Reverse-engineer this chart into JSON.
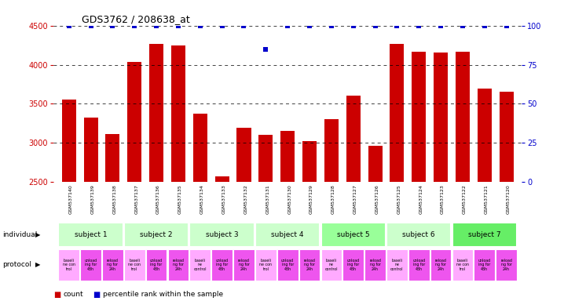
{
  "title": "GDS3762 / 208638_at",
  "samples": [
    "GSM537140",
    "GSM537139",
    "GSM537138",
    "GSM537137",
    "GSM537136",
    "GSM537135",
    "GSM537134",
    "GSM537133",
    "GSM537132",
    "GSM537131",
    "GSM537130",
    "GSM537129",
    "GSM537128",
    "GSM537127",
    "GSM537126",
    "GSM537125",
    "GSM537124",
    "GSM537123",
    "GSM537122",
    "GSM537121",
    "GSM537120"
  ],
  "counts": [
    3550,
    3320,
    3110,
    4040,
    4270,
    4250,
    3370,
    2570,
    3195,
    3100,
    3155,
    3020,
    3300,
    3600,
    2960,
    4270,
    4165,
    4160,
    4165,
    3700,
    3660
  ],
  "percentile_ranks": [
    100,
    100,
    100,
    100,
    100,
    100,
    100,
    100,
    100,
    85,
    100,
    100,
    100,
    100,
    100,
    100,
    100,
    100,
    100,
    100,
    100
  ],
  "ylim_left": [
    2500,
    4500
  ],
  "ylim_right": [
    0,
    100
  ],
  "yticks_left": [
    2500,
    3000,
    3500,
    4000,
    4500
  ],
  "yticks_right": [
    0,
    25,
    50,
    75,
    100
  ],
  "bar_color": "#cc0000",
  "dot_color": "#0000cc",
  "bar_width": 0.65,
  "subjects": [
    {
      "label": "subject 1",
      "start": 0,
      "end": 3,
      "color": "#ccffcc"
    },
    {
      "label": "subject 2",
      "start": 3,
      "end": 6,
      "color": "#ccffcc"
    },
    {
      "label": "subject 3",
      "start": 6,
      "end": 9,
      "color": "#ccffcc"
    },
    {
      "label": "subject 4",
      "start": 9,
      "end": 12,
      "color": "#ccffcc"
    },
    {
      "label": "subject 5",
      "start": 12,
      "end": 15,
      "color": "#99ff99"
    },
    {
      "label": "subject 6",
      "start": 15,
      "end": 18,
      "color": "#ccffcc"
    },
    {
      "label": "subject 7",
      "start": 18,
      "end": 21,
      "color": "#66ee66"
    }
  ],
  "protocols": [
    {
      "label": "baseli\nne con\ntrol",
      "color": "#ffaaff"
    },
    {
      "label": "unload\ning for\n48h",
      "color": "#ee55ee"
    },
    {
      "label": "reload\nng for\n24h",
      "color": "#ee55ee"
    },
    {
      "label": "baseli\nne con\ntrol",
      "color": "#ffaaff"
    },
    {
      "label": "unload\ning for\n48h",
      "color": "#ee55ee"
    },
    {
      "label": "reload\nng for\n24h",
      "color": "#ee55ee"
    },
    {
      "label": "baseli\nne\ncontrol",
      "color": "#ffaaff"
    },
    {
      "label": "unload\ning for\n48h",
      "color": "#ee55ee"
    },
    {
      "label": "reload\nng for\n24h",
      "color": "#ee55ee"
    },
    {
      "label": "baseli\nne con\ntrol",
      "color": "#ffaaff"
    },
    {
      "label": "unload\ning for\n48h",
      "color": "#ee55ee"
    },
    {
      "label": "reload\nng for\n24h",
      "color": "#ee55ee"
    },
    {
      "label": "baseli\nne\ncontrol",
      "color": "#ffaaff"
    },
    {
      "label": "unload\ning for\n48h",
      "color": "#ee55ee"
    },
    {
      "label": "reload\nng for\n24h",
      "color": "#ee55ee"
    },
    {
      "label": "baseli\nne\ncontrol",
      "color": "#ffaaff"
    },
    {
      "label": "unload\ning for\n48h",
      "color": "#ee55ee"
    },
    {
      "label": "reload\nng for\n24h",
      "color": "#ee55ee"
    },
    {
      "label": "baseli\nne con\ntrol",
      "color": "#ffaaff"
    },
    {
      "label": "unload\ning for\n48h",
      "color": "#ee55ee"
    },
    {
      "label": "reload\nng for\n24h",
      "color": "#ee55ee"
    }
  ],
  "legend_count_label": "count",
  "legend_percentile_label": "percentile rank within the sample",
  "individual_label": "individual",
  "protocol_label": "protocol",
  "background_color": "#ffffff"
}
